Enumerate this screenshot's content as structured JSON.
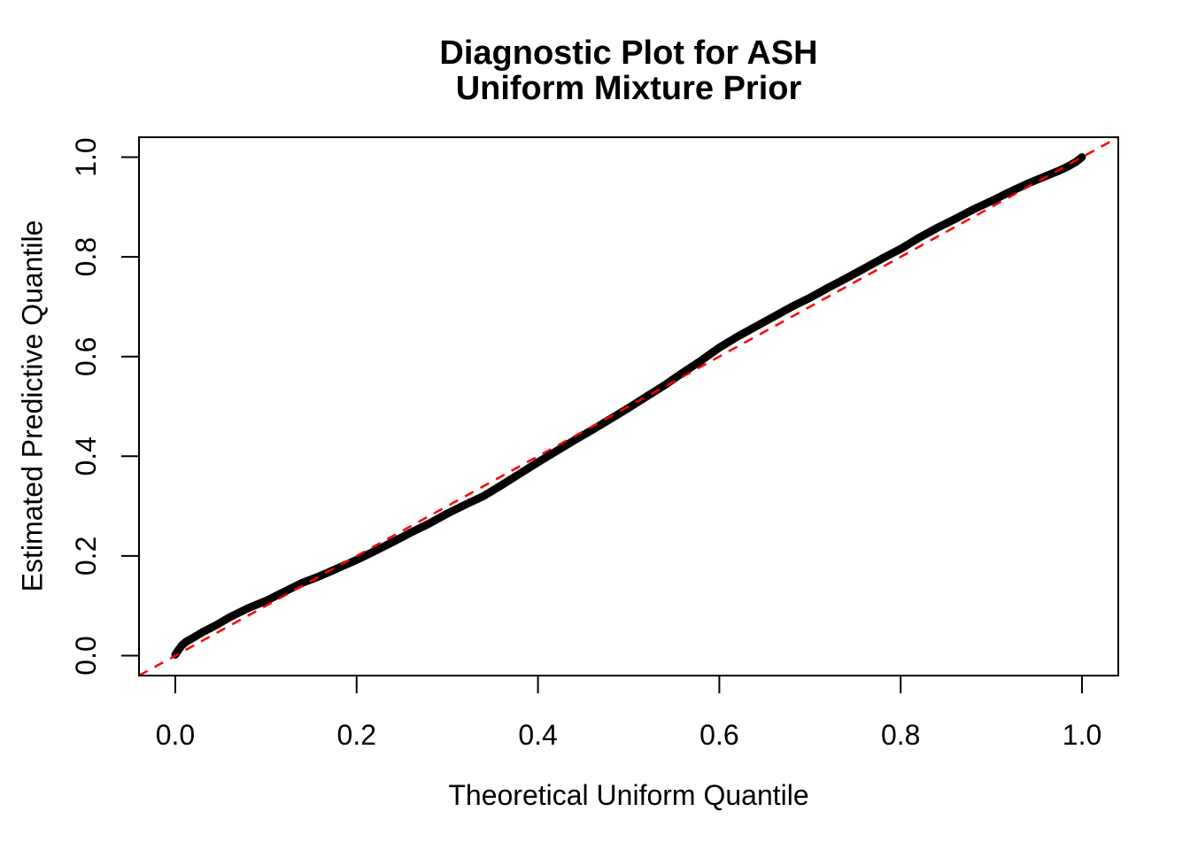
{
  "chart_data": {
    "type": "scatter",
    "title_lines": [
      "Diagnostic Plot for ASH",
      "Uniform Mixture Prior"
    ],
    "xlabel": "Theoretical Uniform Quantile",
    "ylabel": "Estimated Predictive Quantile",
    "xlim": [
      -0.04,
      1.04
    ],
    "ylim": [
      -0.04,
      1.04
    ],
    "xticks": {
      "values": [
        0.0,
        0.2,
        0.4,
        0.6,
        0.8,
        1.0
      ],
      "labels": [
        "0.0",
        "0.2",
        "0.4",
        "0.6",
        "0.8",
        "1.0"
      ]
    },
    "yticks": {
      "values": [
        0.0,
        0.2,
        0.4,
        0.6,
        0.8,
        1.0
      ],
      "labels": [
        "0.0",
        "0.2",
        "0.4",
        "0.6",
        "0.8",
        "1.0"
      ]
    },
    "grid": false,
    "box": true,
    "legend": "none",
    "axis_color": "#000000",
    "reference_line": {
      "kind": "abline",
      "intercept": 0,
      "slope": 1,
      "color": "#ff0000",
      "linetype": "dashed"
    },
    "series": [
      {
        "name": "estimated-vs-theoretical-quantiles",
        "color": "#000000",
        "marker": "dense-points",
        "points": [
          [
            0.0,
            0.002
          ],
          [
            0.003,
            0.01
          ],
          [
            0.007,
            0.02
          ],
          [
            0.012,
            0.028
          ],
          [
            0.02,
            0.036
          ],
          [
            0.03,
            0.047
          ],
          [
            0.045,
            0.061
          ],
          [
            0.06,
            0.077
          ],
          [
            0.08,
            0.095
          ],
          [
            0.1,
            0.11
          ],
          [
            0.12,
            0.128
          ],
          [
            0.14,
            0.146
          ],
          [
            0.16,
            0.16
          ],
          [
            0.18,
            0.176
          ],
          [
            0.2,
            0.192
          ],
          [
            0.22,
            0.21
          ],
          [
            0.24,
            0.228
          ],
          [
            0.26,
            0.247
          ],
          [
            0.28,
            0.265
          ],
          [
            0.3,
            0.285
          ],
          [
            0.32,
            0.303
          ],
          [
            0.34,
            0.32
          ],
          [
            0.36,
            0.342
          ],
          [
            0.38,
            0.365
          ],
          [
            0.4,
            0.388
          ],
          [
            0.42,
            0.41
          ],
          [
            0.44,
            0.432
          ],
          [
            0.46,
            0.453
          ],
          [
            0.48,
            0.475
          ],
          [
            0.5,
            0.497
          ],
          [
            0.52,
            0.52
          ],
          [
            0.54,
            0.543
          ],
          [
            0.56,
            0.568
          ],
          [
            0.58,
            0.592
          ],
          [
            0.6,
            0.618
          ],
          [
            0.62,
            0.64
          ],
          [
            0.64,
            0.66
          ],
          [
            0.66,
            0.68
          ],
          [
            0.68,
            0.7
          ],
          [
            0.7,
            0.718
          ],
          [
            0.72,
            0.738
          ],
          [
            0.74,
            0.757
          ],
          [
            0.76,
            0.777
          ],
          [
            0.78,
            0.797
          ],
          [
            0.8,
            0.816
          ],
          [
            0.82,
            0.838
          ],
          [
            0.84,
            0.858
          ],
          [
            0.86,
            0.876
          ],
          [
            0.88,
            0.895
          ],
          [
            0.9,
            0.912
          ],
          [
            0.92,
            0.93
          ],
          [
            0.94,
            0.947
          ],
          [
            0.96,
            0.962
          ],
          [
            0.975,
            0.973
          ],
          [
            0.985,
            0.982
          ],
          [
            0.993,
            0.99
          ],
          [
            1.0,
            1.0
          ]
        ]
      }
    ]
  }
}
